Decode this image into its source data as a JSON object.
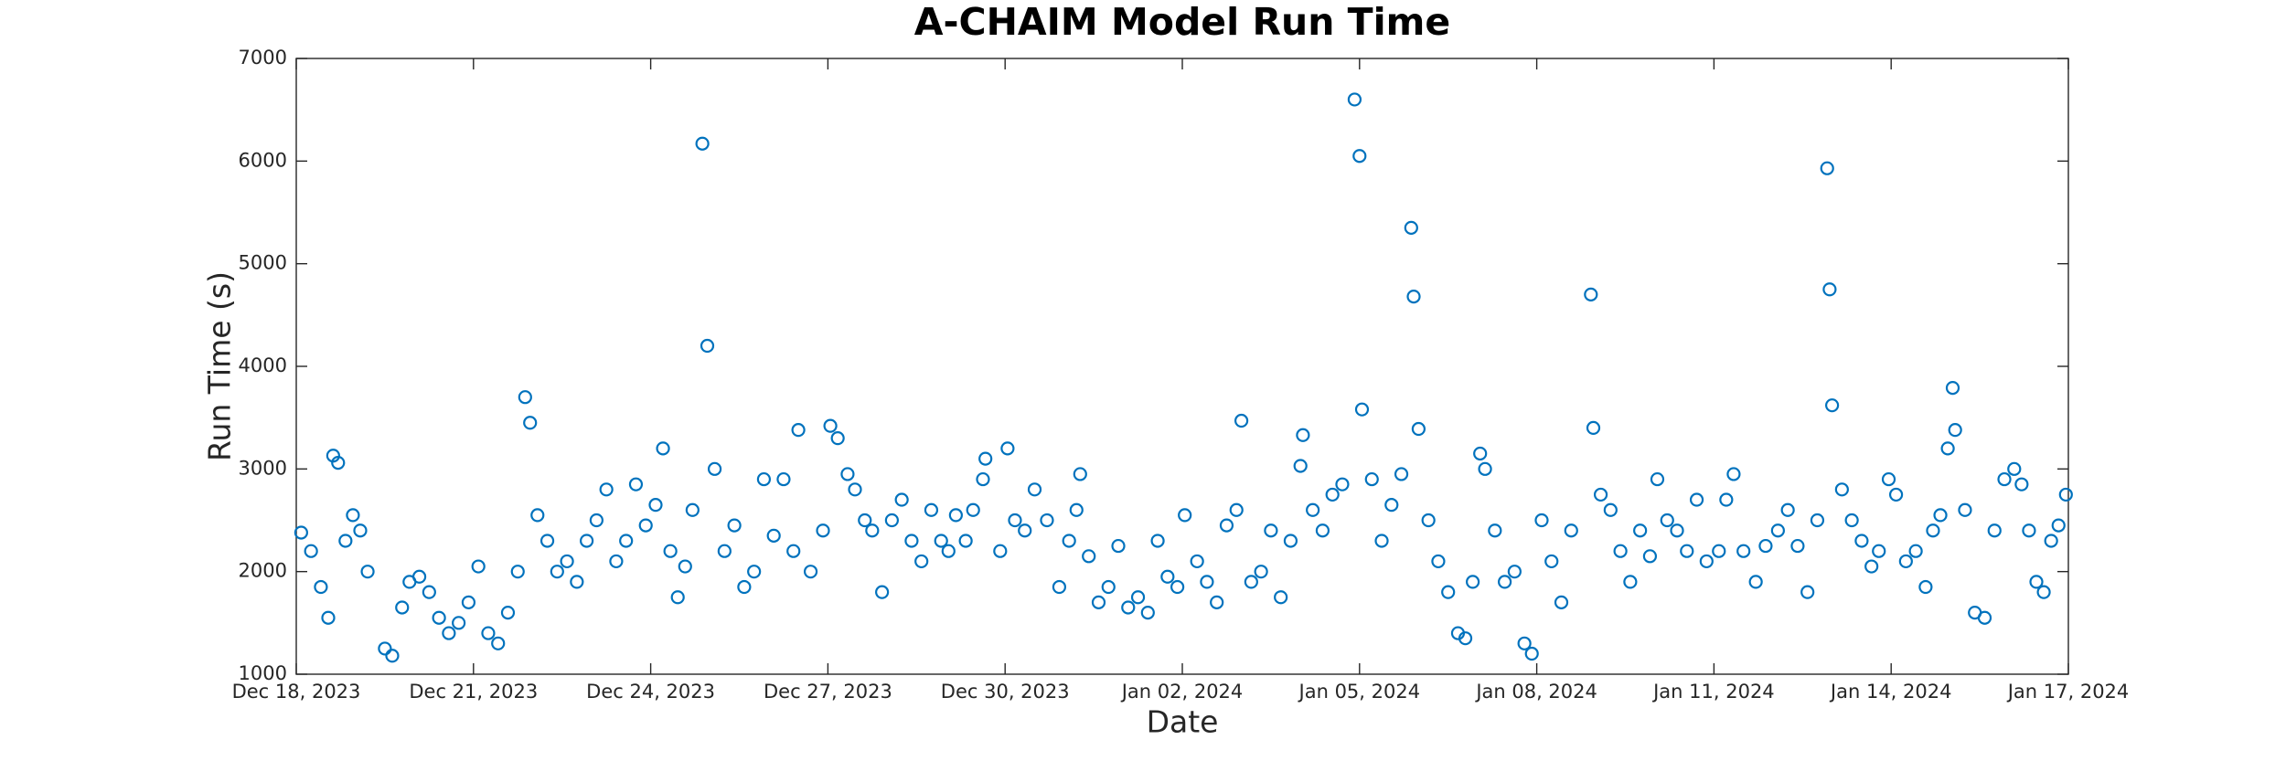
{
  "chart_data": {
    "type": "scatter",
    "title": "A-CHAIM Model Run Time",
    "x_label": "Date",
    "y_label": "Run Time (s)",
    "marker": "open-circle",
    "color": "#0072bd",
    "grid": false,
    "box": true,
    "xlim": [
      "2023-12-18",
      "2024-01-17"
    ],
    "xticks": [
      {
        "value": "2023-12-18",
        "label": "Dec 18, 2023"
      },
      {
        "value": "2023-12-21",
        "label": "Dec 21, 2023"
      },
      {
        "value": "2023-12-24",
        "label": "Dec 24, 2023"
      },
      {
        "value": "2023-12-27",
        "label": "Dec 27, 2023"
      },
      {
        "value": "2023-12-30",
        "label": "Dec 30, 2023"
      },
      {
        "value": "2024-01-02",
        "label": "Jan 02, 2024"
      },
      {
        "value": "2024-01-05",
        "label": "Jan 05, 2024"
      },
      {
        "value": "2024-01-08",
        "label": "Jan 08, 2024"
      },
      {
        "value": "2024-01-11",
        "label": "Jan 11, 2024"
      },
      {
        "value": "2024-01-14",
        "label": "Jan 14, 2024"
      },
      {
        "value": "2024-01-17",
        "label": "Jan 17, 2024"
      }
    ],
    "ylim": [
      1000,
      7000
    ],
    "yticks": [
      1000,
      2000,
      3000,
      4000,
      5000,
      6000,
      7000
    ],
    "x": [
      "2023-12-18T02:00",
      "2023-12-18T06:00",
      "2023-12-18T10:00",
      "2023-12-18T13:00",
      "2023-12-18T15:00",
      "2023-12-18T17:00",
      "2023-12-18T20:00",
      "2023-12-18T23:00",
      "2023-12-19T02:00",
      "2023-12-19T05:00",
      "2023-12-19T12:00",
      "2023-12-19T15:00",
      "2023-12-19T19:00",
      "2023-12-19T22:00",
      "2023-12-20T02:00",
      "2023-12-20T06:00",
      "2023-12-20T10:00",
      "2023-12-20T14:00",
      "2023-12-20T18:00",
      "2023-12-20T22:00",
      "2023-12-21T02:00",
      "2023-12-21T06:00",
      "2023-12-21T10:00",
      "2023-12-21T14:00",
      "2023-12-21T18:00",
      "2023-12-21T21:00",
      "2023-12-21T23:00",
      "2023-12-22T02:00",
      "2023-12-22T06:00",
      "2023-12-22T10:00",
      "2023-12-22T14:00",
      "2023-12-22T18:00",
      "2023-12-22T22:00",
      "2023-12-23T02:00",
      "2023-12-23T06:00",
      "2023-12-23T10:00",
      "2023-12-23T14:00",
      "2023-12-23T18:00",
      "2023-12-23T22:00",
      "2023-12-24T02:00",
      "2023-12-24T05:00",
      "2023-12-24T08:00",
      "2023-12-24T11:00",
      "2023-12-24T14:00",
      "2023-12-24T17:00",
      "2023-12-24T21:00",
      "2023-12-24T23:00",
      "2023-12-25T02:00",
      "2023-12-25T06:00",
      "2023-12-25T10:00",
      "2023-12-25T14:00",
      "2023-12-25T18:00",
      "2023-12-25T22:00",
      "2023-12-26T02:00",
      "2023-12-26T06:00",
      "2023-12-26T10:00",
      "2023-12-26T12:00",
      "2023-12-26T17:00",
      "2023-12-26T22:00",
      "2023-12-27T01:00",
      "2023-12-27T04:00",
      "2023-12-27T08:00",
      "2023-12-27T11:00",
      "2023-12-27T15:00",
      "2023-12-27T18:00",
      "2023-12-27T22:00",
      "2023-12-28T02:00",
      "2023-12-28T06:00",
      "2023-12-28T10:00",
      "2023-12-28T14:00",
      "2023-12-28T18:00",
      "2023-12-28T22:00",
      "2023-12-29T01:00",
      "2023-12-29T04:00",
      "2023-12-29T08:00",
      "2023-12-29T11:00",
      "2023-12-29T15:00",
      "2023-12-29T16:00",
      "2023-12-29T22:00",
      "2023-12-30T01:00",
      "2023-12-30T04:00",
      "2023-12-30T08:00",
      "2023-12-30T12:00",
      "2023-12-30T17:00",
      "2023-12-30T22:00",
      "2023-12-31T02:00",
      "2023-12-31T05:00",
      "2023-12-31T06:30",
      "2023-12-31T10:00",
      "2023-12-31T14:00",
      "2023-12-31T18:00",
      "2023-12-31T22:00",
      "2024-01-01T02:00",
      "2024-01-01T06:00",
      "2024-01-01T10:00",
      "2024-01-01T14:00",
      "2024-01-01T18:00",
      "2024-01-01T22:00",
      "2024-01-02T01:00",
      "2024-01-02T06:00",
      "2024-01-02T10:00",
      "2024-01-02T14:00",
      "2024-01-02T18:00",
      "2024-01-02T22:00",
      "2024-01-03T00:00",
      "2024-01-03T04:00",
      "2024-01-03T08:00",
      "2024-01-03T12:00",
      "2024-01-03T16:00",
      "2024-01-03T20:00",
      "2024-01-04T00:00",
      "2024-01-04T01:00",
      "2024-01-04T05:00",
      "2024-01-04T09:00",
      "2024-01-04T13:00",
      "2024-01-04T17:00",
      "2024-01-04T22:00",
      "2024-01-05T00:00",
      "2024-01-05T01:00",
      "2024-01-05T05:00",
      "2024-01-05T09:00",
      "2024-01-05T13:00",
      "2024-01-05T17:00",
      "2024-01-05T21:00",
      "2024-01-05T22:00",
      "2024-01-06T00:00",
      "2024-01-06T04:00",
      "2024-01-06T08:00",
      "2024-01-06T12:00",
      "2024-01-06T16:00",
      "2024-01-06T19:00",
      "2024-01-06T22:00",
      "2024-01-07T01:00",
      "2024-01-07T03:00",
      "2024-01-07T07:00",
      "2024-01-07T11:00",
      "2024-01-07T15:00",
      "2024-01-07T19:00",
      "2024-01-07T22:00",
      "2024-01-08T02:00",
      "2024-01-08T06:00",
      "2024-01-08T10:00",
      "2024-01-08T14:00",
      "2024-01-08T22:00",
      "2024-01-08T23:00",
      "2024-01-09T02:00",
      "2024-01-09T06:00",
      "2024-01-09T10:00",
      "2024-01-09T14:00",
      "2024-01-09T18:00",
      "2024-01-09T22:00",
      "2024-01-10T01:00",
      "2024-01-10T05:00",
      "2024-01-10T09:00",
      "2024-01-10T13:00",
      "2024-01-10T17:00",
      "2024-01-10T21:00",
      "2024-01-11T02:00",
      "2024-01-11T05:00",
      "2024-01-11T08:00",
      "2024-01-11T12:00",
      "2024-01-11T17:00",
      "2024-01-11T21:00",
      "2024-01-12T02:00",
      "2024-01-12T06:00",
      "2024-01-12T10:00",
      "2024-01-12T14:00",
      "2024-01-12T18:00",
      "2024-01-12T22:00",
      "2024-01-12T23:00",
      "2024-01-13T00:00",
      "2024-01-13T04:00",
      "2024-01-13T08:00",
      "2024-01-13T12:00",
      "2024-01-13T16:00",
      "2024-01-13T19:00",
      "2024-01-13T23:00",
      "2024-01-14T02:00",
      "2024-01-14T06:00",
      "2024-01-14T10:00",
      "2024-01-14T14:00",
      "2024-01-14T17:00",
      "2024-01-14T20:00",
      "2024-01-14T23:00",
      "2024-01-15T01:00",
      "2024-01-15T02:00",
      "2024-01-15T06:00",
      "2024-01-15T10:00",
      "2024-01-15T14:00",
      "2024-01-15T18:00",
      "2024-01-15T22:00",
      "2024-01-16T02:00",
      "2024-01-16T05:00",
      "2024-01-16T08:00",
      "2024-01-16T11:00",
      "2024-01-16T14:00",
      "2024-01-16T17:00",
      "2024-01-16T20:00",
      "2024-01-16T23:00"
    ],
    "values": [
      2380,
      2200,
      1850,
      1550,
      3130,
      3060,
      2300,
      2550,
      2400,
      2000,
      1250,
      1180,
      1650,
      1900,
      1950,
      1800,
      1550,
      1400,
      1500,
      1700,
      2050,
      1400,
      1300,
      1600,
      2000,
      3700,
      3450,
      2550,
      2300,
      2000,
      2100,
      1900,
      2300,
      2500,
      2800,
      2100,
      2300,
      2850,
      2450,
      2650,
      3200,
      2200,
      1750,
      2050,
      2600,
      6170,
      4200,
      3000,
      2200,
      2450,
      1850,
      2000,
      2900,
      2350,
      2900,
      2200,
      3380,
      2000,
      2400,
      3420,
      3300,
      2950,
      2800,
      2500,
      2400,
      1800,
      2500,
      2700,
      2300,
      2100,
      2600,
      2300,
      2200,
      2550,
      2300,
      2600,
      2900,
      3100,
      2200,
      3200,
      2500,
      2400,
      2800,
      2500,
      1850,
      2300,
      2600,
      2950,
      2150,
      1700,
      1850,
      2250,
      1650,
      1750,
      1600,
      2300,
      1950,
      1850,
      2550,
      2100,
      1900,
      1700,
      2450,
      2600,
      3470,
      1900,
      2000,
      2400,
      1750,
      2300,
      3030,
      3330,
      2600,
      2400,
      2750,
      2850,
      6600,
      6050,
      3580,
      2900,
      2300,
      2650,
      2950,
      5350,
      4680,
      3390,
      2500,
      2100,
      1800,
      1400,
      1350,
      1900,
      3150,
      3000,
      2400,
      1900,
      2000,
      1300,
      1200,
      2500,
      2100,
      1700,
      2400,
      4700,
      3400,
      2750,
      2600,
      2200,
      1900,
      2400,
      2150,
      2900,
      2500,
      2400,
      2200,
      2700,
      2100,
      2200,
      2700,
      2950,
      2200,
      1900,
      2250,
      2400,
      2600,
      2250,
      1800,
      2500,
      5930,
      4750,
      3620,
      2800,
      2500,
      2300,
      2050,
      2200,
      2900,
      2750,
      2100,
      2200,
      1850,
      2400,
      2550,
      3200,
      3790,
      3380,
      2600,
      1600,
      1550,
      2400,
      2900,
      3000,
      2850,
      2400,
      1900,
      1800,
      2300,
      2450,
      2750
    ]
  }
}
